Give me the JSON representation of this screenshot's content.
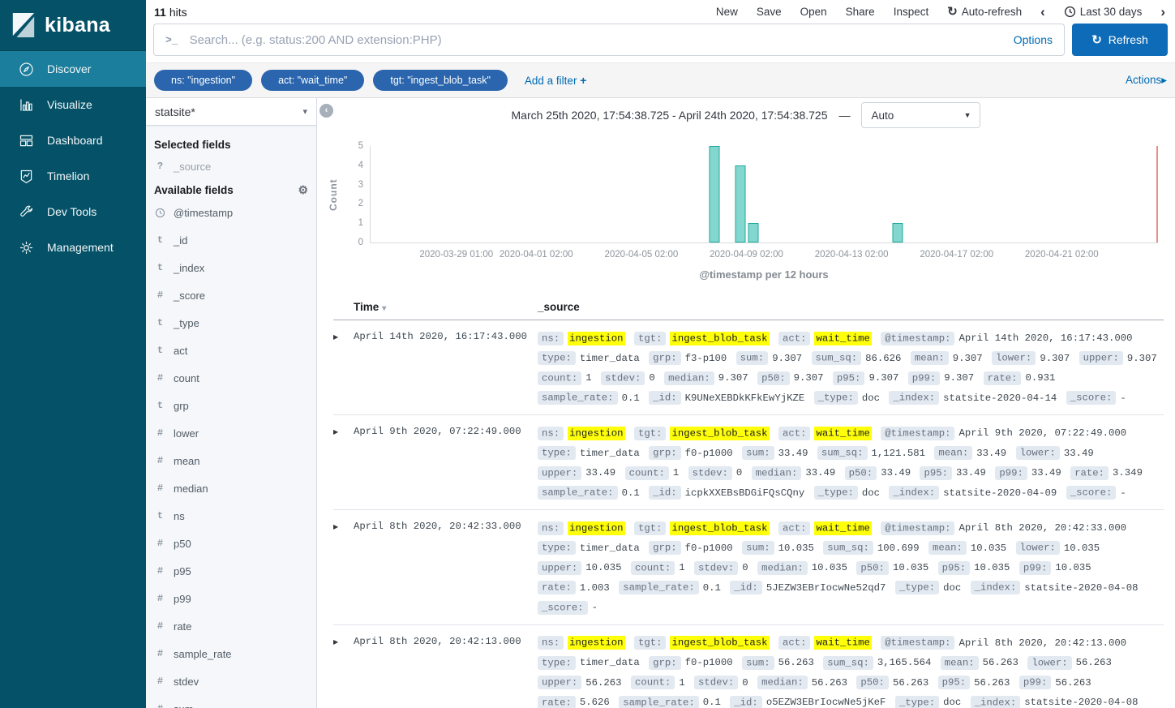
{
  "app": {
    "logo_text": "kibana"
  },
  "icons": {
    "prompt": ">_",
    "caret_down": "▾",
    "select_caret": "▼",
    "sort_caret": "▾",
    "expander": "▶",
    "gear": "⚙",
    "auto_refresh": "↻",
    "refresh": "↻",
    "chevron_left": "‹",
    "chevron_right": "›",
    "collapse_left": "‹",
    "add_plus": "+",
    "actions_arrow": "▸"
  },
  "sidebar": {
    "items": [
      {
        "label": "Discover",
        "active": true
      },
      {
        "label": "Visualize",
        "active": false
      },
      {
        "label": "Dashboard",
        "active": false
      },
      {
        "label": "Timelion",
        "active": false
      },
      {
        "label": "Dev Tools",
        "active": false
      },
      {
        "label": "Management",
        "active": false
      }
    ]
  },
  "topbar": {
    "hits_count": "11",
    "hits_label": "hits",
    "menu": [
      "New",
      "Save",
      "Open",
      "Share",
      "Inspect"
    ],
    "auto_refresh_label": "Auto-refresh",
    "time_range_label": "Last 30 days"
  },
  "search": {
    "placeholder": "Search... (e.g. status:200 AND extension:PHP)",
    "options_label": "Options",
    "refresh_label": "Refresh"
  },
  "filters": {
    "pills": [
      "ns: \"ingestion\"",
      "act: \"wait_time\"",
      "tgt: \"ingest_blob_task\""
    ],
    "add_label": "Add a filter",
    "actions_label": "Actions"
  },
  "fields_panel": {
    "index_pattern": "statsite*",
    "selected_heading": "Selected fields",
    "selected": [
      {
        "icon": "?",
        "name": "_source"
      }
    ],
    "available_heading": "Available fields",
    "available": [
      {
        "icon": "clock",
        "name": "@timestamp"
      },
      {
        "icon": "t",
        "name": "_id"
      },
      {
        "icon": "t",
        "name": "_index"
      },
      {
        "icon": "#",
        "name": "_score"
      },
      {
        "icon": "t",
        "name": "_type"
      },
      {
        "icon": "t",
        "name": "act"
      },
      {
        "icon": "#",
        "name": "count"
      },
      {
        "icon": "t",
        "name": "grp"
      },
      {
        "icon": "#",
        "name": "lower"
      },
      {
        "icon": "#",
        "name": "mean"
      },
      {
        "icon": "#",
        "name": "median"
      },
      {
        "icon": "t",
        "name": "ns"
      },
      {
        "icon": "#",
        "name": "p50"
      },
      {
        "icon": "#",
        "name": "p95"
      },
      {
        "icon": "#",
        "name": "p99"
      },
      {
        "icon": "#",
        "name": "rate"
      },
      {
        "icon": "#",
        "name": "sample_rate"
      },
      {
        "icon": "#",
        "name": "stdev"
      },
      {
        "icon": "#",
        "name": "sum"
      }
    ]
  },
  "chart_header": {
    "range_text": "March 25th 2020, 17:54:38.725 - April 24th 2020, 17:54:38.725",
    "separator": "—",
    "interval": "Auto"
  },
  "chart_data": {
    "type": "bar",
    "ylabel": "Count",
    "xlabel": "@timestamp per 12 hours",
    "ylim": [
      0,
      5
    ],
    "yticks": [
      0,
      1,
      2,
      3,
      4,
      5
    ],
    "time_start": "2020-03-25T17:54:38.725",
    "time_end": "2020-04-24T17:54:38.725",
    "bucket_hours": 12,
    "xticks": [
      "2020-03-29 01:00",
      "2020-04-01 02:00",
      "2020-04-05 02:00",
      "2020-04-09 02:00",
      "2020-04-13 02:00",
      "2020-04-17 02:00",
      "2020-04-21 02:00"
    ],
    "buckets": [
      {
        "time": "2020-04-07 14:00",
        "count": 5
      },
      {
        "time": "2020-04-08 14:00",
        "count": 4
      },
      {
        "time": "2020-04-09 02:00",
        "count": 1
      },
      {
        "time": "2020-04-14 14:00",
        "count": 1
      }
    ],
    "bar_color": "#83d7ce",
    "bar_border": "#1fa89e",
    "now_marker_color": "#e8918a",
    "grid": false,
    "legend": false
  },
  "table": {
    "time_header": "Time",
    "source_header": "_source",
    "rows": [
      {
        "time": "April 14th 2020, 16:17:43.000",
        "fields": [
          {
            "k": "ns:",
            "v": "ingestion",
            "h": true
          },
          {
            "k": "tgt:",
            "v": "ingest_blob_task",
            "h": true
          },
          {
            "k": "act:",
            "v": "wait_time",
            "h": true
          },
          {
            "k": "@timestamp:",
            "v": "April 14th 2020, 16:17:43.000",
            "h": false
          },
          {
            "k": "type:",
            "v": "timer_data",
            "h": false
          },
          {
            "k": "grp:",
            "v": "f3-p100",
            "h": false
          },
          {
            "k": "sum:",
            "v": "9.307",
            "h": false
          },
          {
            "k": "sum_sq:",
            "v": "86.626",
            "h": false
          },
          {
            "k": "mean:",
            "v": "9.307",
            "h": false
          },
          {
            "k": "lower:",
            "v": "9.307",
            "h": false
          },
          {
            "k": "upper:",
            "v": "9.307",
            "h": false
          },
          {
            "k": "count:",
            "v": "1",
            "h": false
          },
          {
            "k": "stdev:",
            "v": "0",
            "h": false
          },
          {
            "k": "median:",
            "v": "9.307",
            "h": false
          },
          {
            "k": "p50:",
            "v": "9.307",
            "h": false
          },
          {
            "k": "p95:",
            "v": "9.307",
            "h": false
          },
          {
            "k": "p99:",
            "v": "9.307",
            "h": false
          },
          {
            "k": "rate:",
            "v": "0.931",
            "h": false
          },
          {
            "k": "sample_rate:",
            "v": "0.1",
            "h": false
          },
          {
            "k": "_id:",
            "v": "K9UNeXEBDkKFkEwYjKZE",
            "h": false
          },
          {
            "k": "_type:",
            "v": "doc",
            "h": false
          },
          {
            "k": "_index:",
            "v": "statsite-2020-04-14",
            "h": false
          },
          {
            "k": "_score:",
            "v": "-",
            "h": false
          }
        ]
      },
      {
        "time": "April 9th 2020, 07:22:49.000",
        "fields": [
          {
            "k": "ns:",
            "v": "ingestion",
            "h": true
          },
          {
            "k": "tgt:",
            "v": "ingest_blob_task",
            "h": true
          },
          {
            "k": "act:",
            "v": "wait_time",
            "h": true
          },
          {
            "k": "@timestamp:",
            "v": "April 9th 2020, 07:22:49.000",
            "h": false
          },
          {
            "k": "type:",
            "v": "timer_data",
            "h": false
          },
          {
            "k": "grp:",
            "v": "f0-p1000",
            "h": false
          },
          {
            "k": "sum:",
            "v": "33.49",
            "h": false
          },
          {
            "k": "sum_sq:",
            "v": "1,121.581",
            "h": false
          },
          {
            "k": "mean:",
            "v": "33.49",
            "h": false
          },
          {
            "k": "lower:",
            "v": "33.49",
            "h": false
          },
          {
            "k": "upper:",
            "v": "33.49",
            "h": false
          },
          {
            "k": "count:",
            "v": "1",
            "h": false
          },
          {
            "k": "stdev:",
            "v": "0",
            "h": false
          },
          {
            "k": "median:",
            "v": "33.49",
            "h": false
          },
          {
            "k": "p50:",
            "v": "33.49",
            "h": false
          },
          {
            "k": "p95:",
            "v": "33.49",
            "h": false
          },
          {
            "k": "p99:",
            "v": "33.49",
            "h": false
          },
          {
            "k": "rate:",
            "v": "3.349",
            "h": false
          },
          {
            "k": "sample_rate:",
            "v": "0.1",
            "h": false
          },
          {
            "k": "_id:",
            "v": "icpkXXEBsBDGiFQsCQny",
            "h": false
          },
          {
            "k": "_type:",
            "v": "doc",
            "h": false
          },
          {
            "k": "_index:",
            "v": "statsite-2020-04-09",
            "h": false
          },
          {
            "k": "_score:",
            "v": "-",
            "h": false
          }
        ]
      },
      {
        "time": "April 8th 2020, 20:42:33.000",
        "fields": [
          {
            "k": "ns:",
            "v": "ingestion",
            "h": true
          },
          {
            "k": "tgt:",
            "v": "ingest_blob_task",
            "h": true
          },
          {
            "k": "act:",
            "v": "wait_time",
            "h": true
          },
          {
            "k": "@timestamp:",
            "v": "April 8th 2020, 20:42:33.000",
            "h": false
          },
          {
            "k": "type:",
            "v": "timer_data",
            "h": false
          },
          {
            "k": "grp:",
            "v": "f0-p1000",
            "h": false
          },
          {
            "k": "sum:",
            "v": "10.035",
            "h": false
          },
          {
            "k": "sum_sq:",
            "v": "100.699",
            "h": false
          },
          {
            "k": "mean:",
            "v": "10.035",
            "h": false
          },
          {
            "k": "lower:",
            "v": "10.035",
            "h": false
          },
          {
            "k": "upper:",
            "v": "10.035",
            "h": false
          },
          {
            "k": "count:",
            "v": "1",
            "h": false
          },
          {
            "k": "stdev:",
            "v": "0",
            "h": false
          },
          {
            "k": "median:",
            "v": "10.035",
            "h": false
          },
          {
            "k": "p50:",
            "v": "10.035",
            "h": false
          },
          {
            "k": "p95:",
            "v": "10.035",
            "h": false
          },
          {
            "k": "p99:",
            "v": "10.035",
            "h": false
          },
          {
            "k": "rate:",
            "v": "1.003",
            "h": false
          },
          {
            "k": "sample_rate:",
            "v": "0.1",
            "h": false
          },
          {
            "k": "_id:",
            "v": "5JEZW3EBrIocwNe52qd7",
            "h": false
          },
          {
            "k": "_type:",
            "v": "doc",
            "h": false
          },
          {
            "k": "_index:",
            "v": "statsite-2020-04-08",
            "h": false
          },
          {
            "k": "_score:",
            "v": "-",
            "h": false
          }
        ]
      },
      {
        "time": "April 8th 2020, 20:42:13.000",
        "fields": [
          {
            "k": "ns:",
            "v": "ingestion",
            "h": true
          },
          {
            "k": "tgt:",
            "v": "ingest_blob_task",
            "h": true
          },
          {
            "k": "act:",
            "v": "wait_time",
            "h": true
          },
          {
            "k": "@timestamp:",
            "v": "April 8th 2020, 20:42:13.000",
            "h": false
          },
          {
            "k": "type:",
            "v": "timer_data",
            "h": false
          },
          {
            "k": "grp:",
            "v": "f0-p1000",
            "h": false
          },
          {
            "k": "sum:",
            "v": "56.263",
            "h": false
          },
          {
            "k": "sum_sq:",
            "v": "3,165.564",
            "h": false
          },
          {
            "k": "mean:",
            "v": "56.263",
            "h": false
          },
          {
            "k": "lower:",
            "v": "56.263",
            "h": false
          },
          {
            "k": "upper:",
            "v": "56.263",
            "h": false
          },
          {
            "k": "count:",
            "v": "1",
            "h": false
          },
          {
            "k": "stdev:",
            "v": "0",
            "h": false
          },
          {
            "k": "median:",
            "v": "56.263",
            "h": false
          },
          {
            "k": "p50:",
            "v": "56.263",
            "h": false
          },
          {
            "k": "p95:",
            "v": "56.263",
            "h": false
          },
          {
            "k": "p99:",
            "v": "56.263",
            "h": false
          },
          {
            "k": "rate:",
            "v": "5.626",
            "h": false
          },
          {
            "k": "sample_rate:",
            "v": "0.1",
            "h": false
          },
          {
            "k": "_id:",
            "v": "o5EZW3EBrIocwNe5jKeF",
            "h": false
          },
          {
            "k": "_type:",
            "v": "doc",
            "h": false
          },
          {
            "k": "_index:",
            "v": "statsite-2020-04-08",
            "h": false
          },
          {
            "k": "_score:",
            "v": "-",
            "h": false
          }
        ]
      }
    ]
  }
}
